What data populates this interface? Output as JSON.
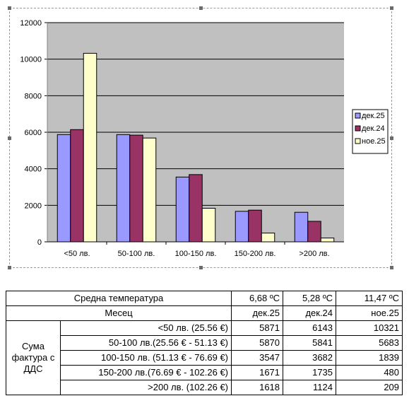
{
  "chart_data": {
    "type": "bar",
    "categories": [
      "<50 лв.",
      "50-100 лв.",
      "100-150 лв.",
      "150-200 лв.",
      ">200 лв."
    ],
    "series": [
      {
        "name": "дек.25",
        "color": "#9999ff",
        "values": [
          5871,
          5870,
          3547,
          1671,
          1618
        ]
      },
      {
        "name": "дек.24",
        "color": "#993366",
        "values": [
          6143,
          5841,
          3682,
          1735,
          1124
        ]
      },
      {
        "name": "ное.25",
        "color": "#ffffcc",
        "values": [
          10321,
          5683,
          1839,
          480,
          209
        ]
      }
    ],
    "ylim": [
      0,
      12000
    ],
    "yticks": [
      0,
      2000,
      4000,
      6000,
      8000,
      10000,
      12000
    ],
    "grid": true,
    "plot_background": "#c0c0c0",
    "legend": "right",
    "title": "",
    "xlabel": "",
    "ylabel": ""
  },
  "table": {
    "temp_label": "Средна температура",
    "temps": [
      "6,68 ºC",
      "5,28 ºC",
      "11,47 ºC"
    ],
    "month_label": "Месец",
    "months": [
      "дек.25",
      "дек.24",
      "ное.25"
    ],
    "group_label": "Сума фактура с ДДС",
    "rows": [
      {
        "label": "<50 лв. (25.56 €)",
        "values": [
          "5871",
          "6143",
          "10321"
        ]
      },
      {
        "label": "50-100 лв.(25.56 € - 51.13 €)",
        "values": [
          "5870",
          "5841",
          "5683"
        ]
      },
      {
        "label": "100-150 лв. (51.13 € - 76.69 €)",
        "values": [
          "3547",
          "3682",
          "1839"
        ]
      },
      {
        "label": "150-200 лв.(76.69 € - 102.26 €)",
        "values": [
          "1671",
          "1735",
          "480"
        ]
      },
      {
        "label": ">200 лв. (102.26 €)",
        "values": [
          "1618",
          "1124",
          "209"
        ]
      }
    ]
  }
}
